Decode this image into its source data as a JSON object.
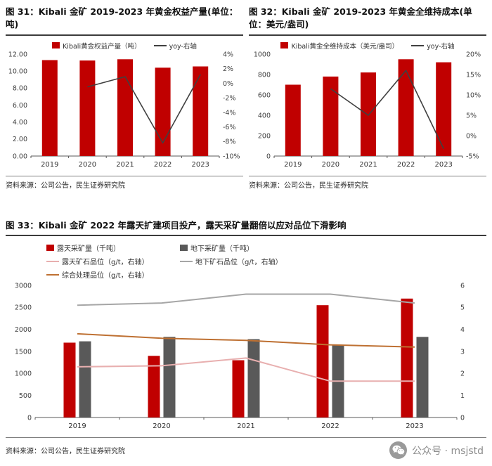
{
  "figures": [
    {
      "title": "图 31：Kibali 金矿 2019-2023 年黄金权益产量(单位：吨)",
      "source": "资料来源：公司公告，民生证券研究院"
    },
    {
      "title": "图 32：Kibali 金矿 2019-2023 年黄金全维持成本(单位：美元/盎司)",
      "source": "资料来源：公司公告，民生证券研究院"
    },
    {
      "title": "图 33：Kibali 金矿 2022 年露天扩建项目投产，露天采矿量翻倍以应对品位下滑影响",
      "source": "资料来源：公司公告，民生证券研究院"
    }
  ],
  "badge": {
    "icon": "wechat-icon",
    "label": "公众号 · msjstd"
  },
  "colors": {
    "accent_red": "#C00000",
    "bar_gray": "#595959",
    "line_dark": "#404040",
    "line_pink": "#E8AFAF",
    "line_gray": "#A6A6A6",
    "line_brown": "#BE7032",
    "title_rule": "#3b3b3b",
    "source_rule": "#7f7f7f"
  },
  "chart_data": [
    {
      "type": "bar",
      "title": "图 31：Kibali 金矿 2019-2023 年黄金权益产量(单位：吨)",
      "categories": [
        "2019",
        "2020",
        "2021",
        "2022",
        "2023"
      ],
      "series": [
        {
          "name": "Kibali黄金权益产量（吨）",
          "kind": "bar",
          "axis": "left",
          "color": "#C00000",
          "values": [
            11.3,
            11.25,
            11.4,
            10.4,
            10.55
          ]
        },
        {
          "name": "yoy-右轴",
          "kind": "line",
          "axis": "right",
          "color": "#404040",
          "values": [
            null,
            -0.5,
            0.9,
            -8.2,
            1.2
          ]
        }
      ],
      "left_axis": {
        "min": 0,
        "max": 12,
        "ticks": [
          "12.00",
          "10.00",
          "8.00",
          "6.00",
          "4.00",
          "2.00",
          "0.00"
        ]
      },
      "right_axis": {
        "min": -10,
        "max": 4,
        "ticks": [
          "4%",
          "2%",
          "0%",
          "-2%",
          "-4%",
          "-6%",
          "-8%",
          "-10%"
        ]
      },
      "grid": false,
      "legend_position": "top-center"
    },
    {
      "type": "bar",
      "title": "图 32：Kibali 金矿 2019-2023 年黄金全维持成本(单位：美元/盎司)",
      "categories": [
        "2019",
        "2020",
        "2021",
        "2022",
        "2023"
      ],
      "series": [
        {
          "name": "Kibali黄金全维持成本（美元/盎司）",
          "kind": "bar",
          "axis": "left",
          "color": "#C00000",
          "values": [
            700,
            780,
            820,
            950,
            920
          ]
        },
        {
          "name": "yoy-右轴",
          "kind": "line",
          "axis": "right",
          "color": "#404040",
          "values": [
            null,
            11.5,
            5.0,
            16.0,
            -3.2
          ]
        }
      ],
      "left_axis": {
        "min": 0,
        "max": 1000,
        "ticks": [
          "1000",
          "800",
          "600",
          "400",
          "200",
          "0"
        ]
      },
      "right_axis": {
        "min": -5,
        "max": 20,
        "ticks": [
          "20%",
          "15%",
          "10%",
          "5%",
          "0%",
          "-5%"
        ]
      },
      "grid": false,
      "legend_position": "top-center"
    },
    {
      "type": "bar",
      "title": "图 33：Kibali 金矿 2022 年露天扩建项目投产，露天采矿量翻倍以应对品位下滑影响",
      "categories": [
        "2019",
        "2020",
        "2021",
        "2022",
        "2023"
      ],
      "series": [
        {
          "name": "露天采矿量（千吨）",
          "kind": "bar",
          "axis": "left",
          "color": "#C00000",
          "values": [
            1700,
            1400,
            1300,
            2550,
            2700
          ]
        },
        {
          "name": "地下采矿量（千吨）",
          "kind": "bar",
          "axis": "left",
          "color": "#595959",
          "values": [
            1730,
            1830,
            1780,
            1650,
            1830
          ]
        },
        {
          "name": "露天矿石品位（g/t，右轴）",
          "kind": "line",
          "axis": "right",
          "color": "#E8AFAF",
          "values": [
            2.3,
            2.35,
            2.7,
            1.65,
            1.65
          ]
        },
        {
          "name": "地下矿石品位（g/t，右轴）",
          "kind": "line",
          "axis": "right",
          "color": "#A6A6A6",
          "values": [
            5.1,
            5.2,
            5.6,
            5.6,
            5.2
          ]
        },
        {
          "name": "综合处理品位（g/t，右轴）",
          "kind": "line",
          "axis": "right",
          "color": "#BE7032",
          "values": [
            3.8,
            3.6,
            3.5,
            3.3,
            3.2
          ]
        }
      ],
      "left_axis": {
        "min": 0,
        "max": 3000,
        "ticks": [
          "3000",
          "2500",
          "2000",
          "1500",
          "1000",
          "500",
          "0"
        ]
      },
      "right_axis": {
        "min": 0,
        "max": 6,
        "ticks": [
          "6",
          "5",
          "4",
          "3",
          "2",
          "1",
          "0"
        ]
      },
      "grid": false,
      "legend_position": "top-left"
    }
  ]
}
